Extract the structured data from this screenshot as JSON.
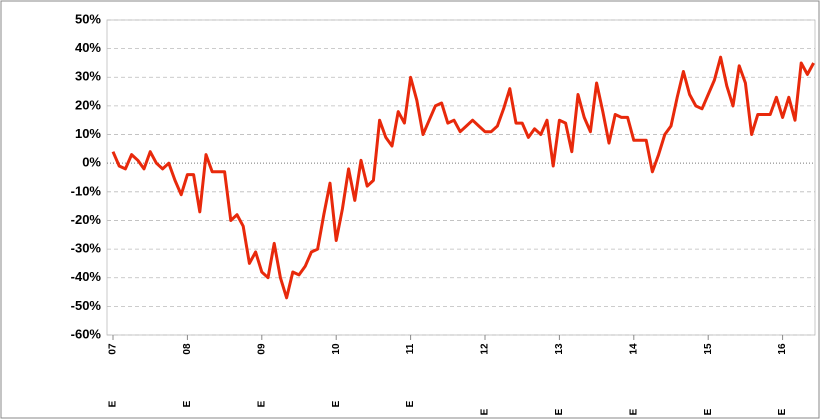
{
  "chart_data": {
    "type": "line",
    "categories": [
      "07",
      null,
      null,
      null,
      null,
      null,
      null,
      null,
      null,
      null,
      null,
      null,
      "08",
      null,
      null,
      null,
      null,
      null,
      null,
      null,
      null,
      null,
      null,
      null,
      "09",
      null,
      null,
      null,
      null,
      null,
      null,
      null,
      null,
      null,
      null,
      null,
      "10",
      null,
      null,
      null,
      null,
      null,
      null,
      null,
      null,
      null,
      null,
      null,
      "11",
      null,
      null,
      null,
      null,
      null,
      null,
      null,
      null,
      null,
      null,
      null,
      "12",
      null,
      null,
      null,
      null,
      null,
      null,
      null,
      null,
      null,
      null,
      null,
      "13",
      null,
      null,
      null,
      null,
      null,
      null,
      null,
      null,
      null,
      null,
      null,
      "14",
      null,
      null,
      null,
      null,
      null,
      null,
      null,
      null,
      null,
      null,
      null,
      "15",
      null,
      null,
      null,
      null,
      null,
      null,
      null,
      null,
      null,
      null,
      null,
      "16",
      null,
      null,
      null,
      null,
      null
    ],
    "category_notes": [
      "E",
      "E",
      "E",
      "E",
      "E",
      "E",
      "E",
      "E",
      "E",
      "E"
    ],
    "series": [
      {
        "color": "#e8290b",
        "values": [
          4,
          -1,
          -2,
          3,
          1,
          -2,
          4,
          0,
          -2,
          0,
          -6,
          -11,
          -4,
          -4,
          -17,
          3,
          -3,
          -3,
          -3,
          -20,
          -18,
          -22,
          -35,
          -31,
          -38,
          -40,
          -28,
          -40,
          -47,
          -38,
          -39,
          -36,
          -31,
          -30,
          -18,
          -7,
          -27,
          -16,
          -2,
          -13,
          1,
          -8,
          -6,
          15,
          9,
          6,
          18,
          14,
          30,
          22,
          10,
          15,
          20,
          21,
          14,
          15,
          11,
          13,
          15,
          13,
          11,
          11,
          13,
          19,
          26,
          14,
          14,
          9,
          12,
          10,
          15,
          -1,
          15,
          14,
          4,
          24,
          16,
          11,
          28,
          18,
          7,
          17,
          16,
          16,
          8,
          8,
          8,
          -3,
          3,
          10,
          13,
          23,
          32,
          24,
          20,
          19,
          24,
          29,
          37,
          27,
          20,
          34,
          28,
          10,
          17,
          17,
          17,
          23,
          16,
          23,
          15,
          35,
          31,
          35
        ]
      }
    ],
    "ylim": [
      -60,
      50
    ],
    "yticks": [
      {
        "value": -60,
        "label": "-60%"
      },
      {
        "value": -50,
        "label": "-50%"
      },
      {
        "value": -40,
        "label": "-40%"
      },
      {
        "value": -30,
        "label": "-30%"
      },
      {
        "value": -20,
        "label": "-20%"
      },
      {
        "value": -10,
        "label": "-10%"
      },
      {
        "value": 0,
        "label": "0%"
      },
      {
        "value": 10,
        "label": "10%"
      },
      {
        "value": 20,
        "label": "20%"
      },
      {
        "value": 30,
        "label": "30%"
      },
      {
        "value": 40,
        "label": "40%"
      },
      {
        "value": 50,
        "label": "50%"
      }
    ],
    "grid": true
  }
}
